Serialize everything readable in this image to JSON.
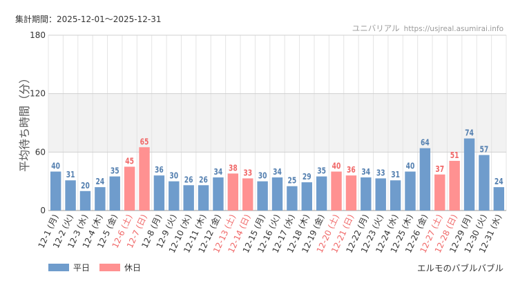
{
  "period_text": "集計期間：2025-12-01～2025-12-31",
  "source": {
    "site": "ユニバリアル",
    "url": "https://usjreal.asumirai.info"
  },
  "attraction_name": "エルモのバブルバブル",
  "colors": {
    "weekday": "#6f9ccc",
    "weekday_label": "#5580b0",
    "holiday": "#ff9191",
    "holiday_label": "#f06868",
    "band": "#f2f2f2",
    "grid": "#e4e4e4"
  },
  "chart_data": {
    "type": "bar",
    "title": "",
    "xlabel": "",
    "ylabel": "平均待ち時間（分）",
    "ylim": [
      0,
      180
    ],
    "yticks": [
      0,
      60,
      120,
      180
    ],
    "shaded_band": [
      60,
      120
    ],
    "legend": [
      {
        "name": "平日",
        "color": "#6f9ccc"
      },
      {
        "name": "休日",
        "color": "#ff9191"
      }
    ],
    "legend_position": "bottom-left",
    "categories": [
      "12-1 (月)",
      "12-2 (火)",
      "12-3 (水)",
      "12-4 (木)",
      "12-5 (金)",
      "12-6 (土)",
      "12-7 (日)",
      "12-8 (月)",
      "12-9 (火)",
      "12-10 (水)",
      "12-11 (木)",
      "12-12 (金)",
      "12-13 (土)",
      "12-14 (日)",
      "12-15 (月)",
      "12-16 (火)",
      "12-17 (水)",
      "12-18 (木)",
      "12-19 (金)",
      "12-20 (土)",
      "12-21 (日)",
      "12-22 (月)",
      "12-23 (火)",
      "12-24 (水)",
      "12-25 (木)",
      "12-26 (金)",
      "12-27 (土)",
      "12-28 (日)",
      "12-29 (月)",
      "12-30 (火)",
      "12-31 (水)"
    ],
    "values": [
      40,
      31,
      20,
      24,
      35,
      45,
      65,
      36,
      30,
      26,
      26,
      34,
      38,
      33,
      30,
      34,
      25,
      29,
      35,
      40,
      36,
      34,
      33,
      31,
      40,
      64,
      37,
      51,
      74,
      57,
      24
    ],
    "day_types": [
      "平日",
      "平日",
      "平日",
      "平日",
      "平日",
      "休日",
      "休日",
      "平日",
      "平日",
      "平日",
      "平日",
      "平日",
      "休日",
      "休日",
      "平日",
      "平日",
      "平日",
      "平日",
      "平日",
      "休日",
      "休日",
      "平日",
      "平日",
      "平日",
      "平日",
      "平日",
      "休日",
      "休日",
      "平日",
      "平日",
      "平日"
    ]
  }
}
